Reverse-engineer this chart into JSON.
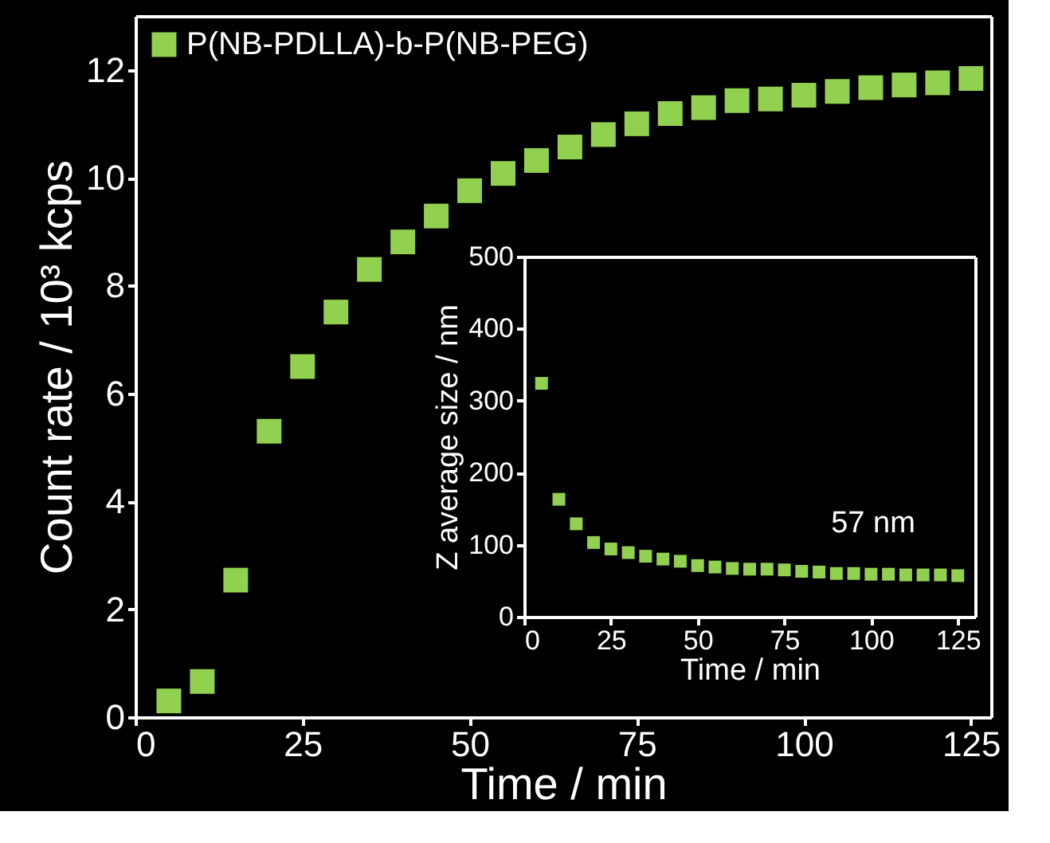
{
  "chart_data": [
    {
      "type": "scatter",
      "xlabel": "Time / min",
      "ylabel": "Count rate / 10³ kcps",
      "x": [
        5,
        10,
        15,
        20,
        25,
        30,
        35,
        40,
        45,
        50,
        55,
        60,
        65,
        70,
        75,
        80,
        85,
        90,
        95,
        100,
        105,
        110,
        115,
        120,
        125
      ],
      "series": [
        {
          "name": "P(NB-PDLLA)-b-P(NB-PEG)",
          "color": "#92d050",
          "values": [
            0.3,
            0.66,
            2.54,
            5.3,
            6.5,
            7.51,
            8.3,
            8.81,
            9.29,
            9.76,
            10.08,
            10.32,
            10.57,
            10.8,
            11.0,
            11.19,
            11.3,
            11.43,
            11.46,
            11.53,
            11.6,
            11.67,
            11.72,
            11.76,
            11.84
          ]
        }
      ],
      "xlim": [
        0,
        128
      ],
      "ylim": [
        0,
        13
      ],
      "xticks": [
        0,
        25,
        50,
        75,
        100,
        125
      ],
      "yticks": [
        0,
        2,
        4,
        6,
        8,
        10,
        12
      ],
      "legend": "top left",
      "marker": "square",
      "grid": false
    },
    {
      "type": "scatter",
      "xlabel": "Time / min",
      "ylabel": "Z average size / nm",
      "x": [
        5,
        10,
        15,
        20,
        25,
        30,
        35,
        40,
        45,
        50,
        55,
        60,
        65,
        70,
        75,
        80,
        85,
        90,
        95,
        100,
        105,
        110,
        115,
        120,
        125
      ],
      "series": [
        {
          "color": "#92d050",
          "values": [
            324,
            163,
            129,
            103,
            94,
            89,
            84,
            80,
            77,
            71,
            69,
            67,
            66,
            66,
            65,
            63,
            62,
            60,
            60,
            59,
            59,
            58,
            58,
            58,
            57
          ]
        }
      ],
      "xlim": [
        0,
        130
      ],
      "ylim": [
        0,
        500
      ],
      "xticks": [
        0,
        25,
        50,
        75,
        100,
        125
      ],
      "yticks": [
        0,
        100,
        200,
        300,
        400,
        500
      ],
      "annotations": [
        "57 nm"
      ],
      "marker": "square",
      "grid": false
    }
  ]
}
